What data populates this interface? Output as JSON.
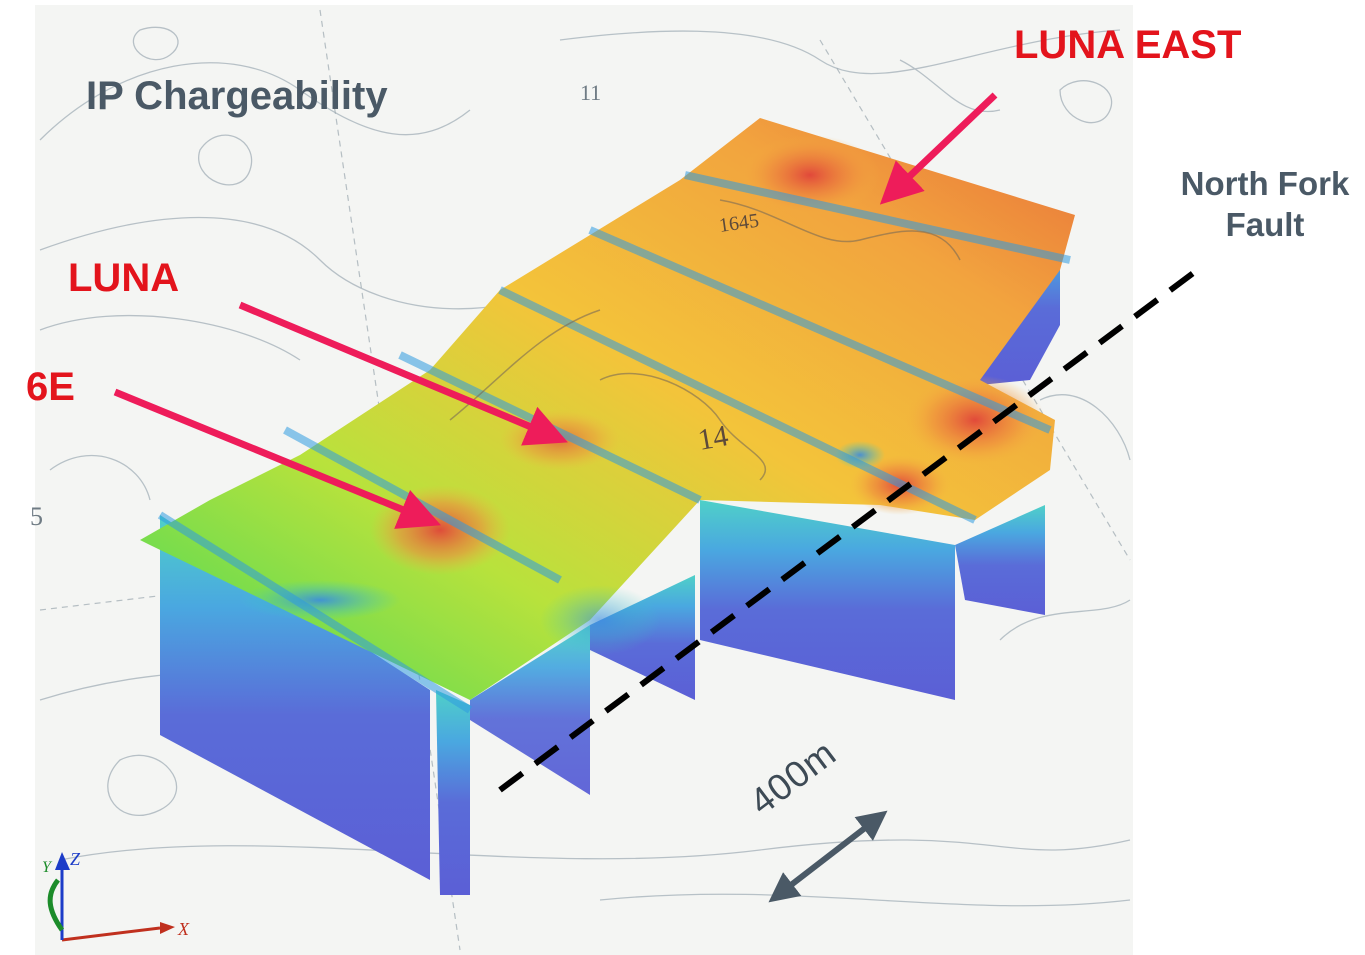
{
  "title": "IP Chargeability",
  "targets": {
    "luna_east": "LUNA EAST",
    "luna": "LUNA",
    "six_e": "6E"
  },
  "fault": {
    "line1": "North Fork",
    "line2": "Fault"
  },
  "scale_bar": "400m",
  "axes": {
    "x": "X",
    "y": "Y",
    "z": "Z"
  },
  "contour_labels": [
    "11",
    "1645",
    "14",
    "5"
  ],
  "colors": {
    "target_text": "#e3141c",
    "arrow": "#ee1c5a",
    "label_text": "#4a5966",
    "high": "#e8503a",
    "mid": "#f5c040",
    "low": "#5fd45f",
    "deep": "#5b5fd6"
  }
}
